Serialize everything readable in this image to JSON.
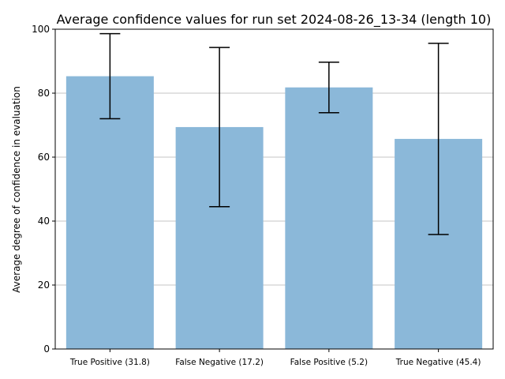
{
  "chart_data": {
    "type": "bar",
    "title": "Average confidence values for run set 2024-08-26_13-34 (length 10)",
    "xlabel": "",
    "ylabel": "Average degree of confidence in evaluation",
    "ylim": [
      0,
      100
    ],
    "yticks": [
      0,
      20,
      40,
      60,
      80,
      100
    ],
    "grid": "y",
    "categories": [
      "True Positive (31.8)",
      "False Negative (17.2)",
      "False Positive (5.2)",
      "True Negative (45.4)"
    ],
    "values": [
      85.3,
      69.4,
      81.8,
      65.7
    ],
    "error_low": [
      72.0,
      44.5,
      73.9,
      35.8
    ],
    "error_high": [
      98.6,
      94.3,
      89.7,
      95.6
    ],
    "colors": {
      "bar": "#8bb8d9",
      "error": "#000000",
      "grid": "#b0b0b0"
    }
  }
}
